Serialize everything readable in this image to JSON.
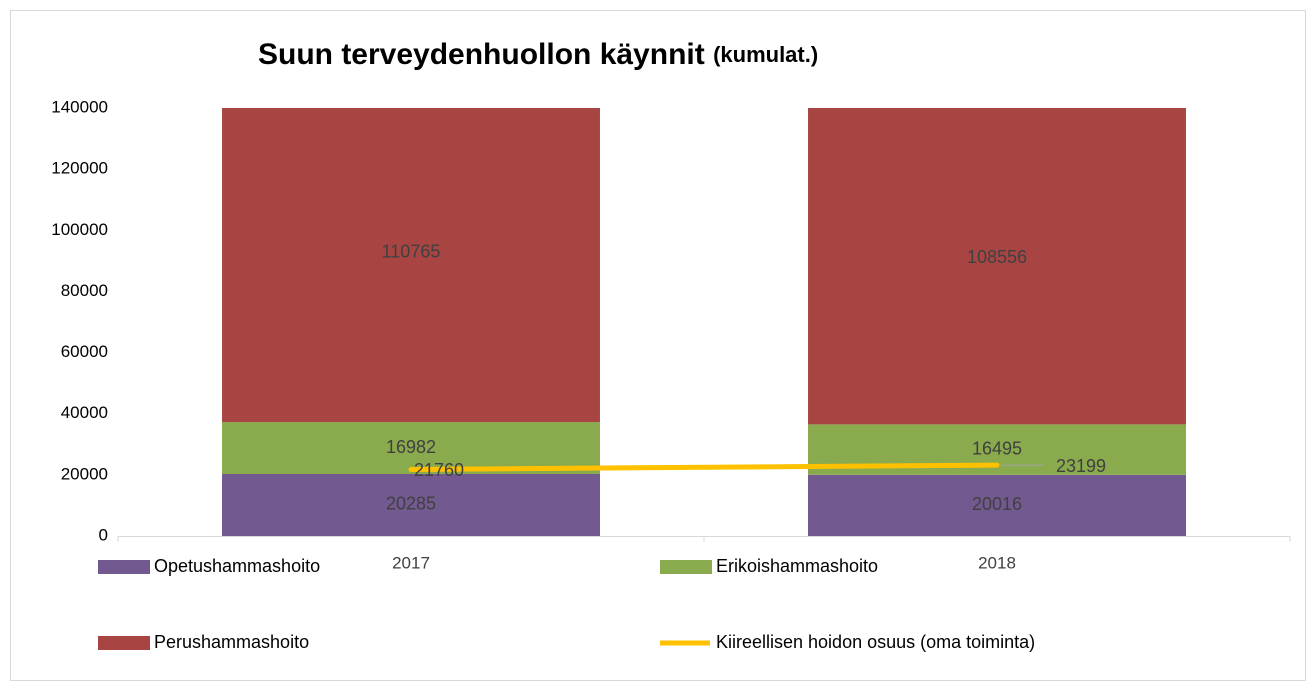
{
  "chart_data": {
    "type": "bar",
    "stacked": true,
    "title": "Suun terveydenhuollon käynnit",
    "subtitle": "(kumulat.)",
    "categories": [
      "2017",
      "2018"
    ],
    "series": [
      {
        "name": "Opetushammashoito",
        "color": "#72598f",
        "values": [
          20285,
          20016
        ]
      },
      {
        "name": "Erikoishammashoito",
        "color": "#8aaa4e",
        "values": [
          16982,
          16495
        ]
      },
      {
        "name": "Perushammashoito",
        "color": "#a84542",
        "values": [
          110765,
          108556
        ]
      },
      {
        "name": "Kiireellisen hoidon osuus (oma toiminta)",
        "type": "line",
        "color": "#ffc000",
        "values": [
          21760,
          23199
        ]
      }
    ],
    "ylim": [
      0,
      140000
    ],
    "yticks": [
      0,
      20000,
      40000,
      60000,
      80000,
      100000,
      120000,
      140000
    ],
    "grid": false,
    "legend": "bottom"
  }
}
